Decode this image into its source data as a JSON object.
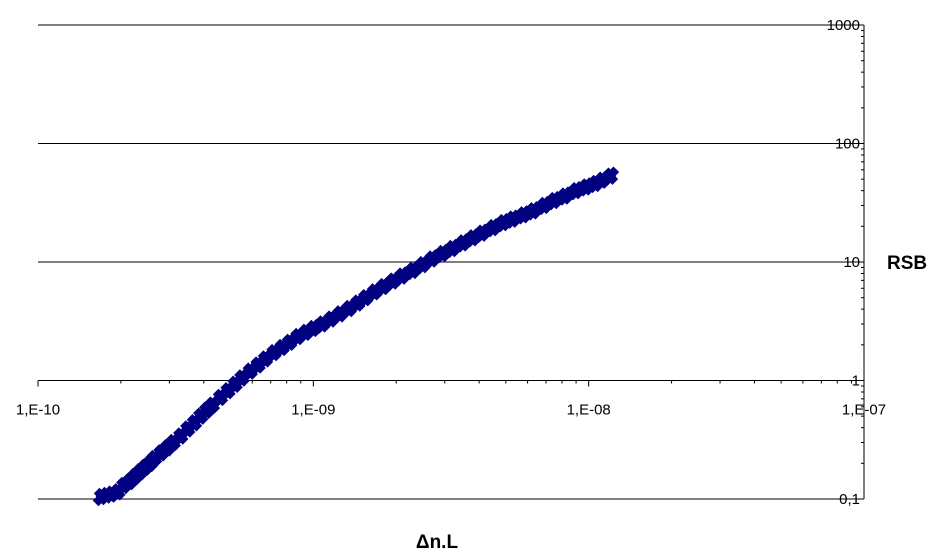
{
  "chart_data": {
    "type": "scatter",
    "title": "",
    "xlabel": "Δn.L",
    "ylabel": "RSB",
    "x_scale": "log",
    "y_scale": "log",
    "xlim": [
      1e-10,
      1e-07
    ],
    "ylim": [
      0.1,
      1000
    ],
    "x_ticks": [
      1e-10,
      1e-09,
      1e-08,
      1e-07
    ],
    "x_tick_labels": [
      "1,E-10",
      "1,E-09",
      "1,E-08",
      "1,E-07"
    ],
    "y_ticks": [
      0.1,
      1,
      10,
      100,
      1000
    ],
    "y_tick_labels": [
      "0,1",
      "1",
      "10",
      "100",
      "1000"
    ],
    "grid": "horizontal",
    "x_axis_crosses_y_at": 1,
    "y_axis_position": "right",
    "marker": "diamond",
    "color": "#000080",
    "series": [
      {
        "x": [
          1.7e-10,
          1.85e-10,
          1.95e-10,
          2.05e-10,
          2.15e-10,
          2.25e-10,
          2.35e-10,
          2.45e-10,
          2.55e-10,
          2.65e-10,
          2.8e-10,
          2.95e-10,
          3.1e-10,
          3.3e-10,
          3.5e-10,
          3.7e-10,
          3.9e-10,
          4.1e-10,
          4.3e-10,
          4.6e-10,
          4.9e-10,
          5.2e-10,
          5.5e-10,
          5.9e-10,
          6.3e-10,
          6.7e-10,
          7.2e-10,
          7.7e-10,
          8.2e-10,
          8.8e-10,
          9.4e-10,
          1e-09,
          1.08e-09,
          1.16e-09,
          1.25e-09,
          1.35e-09,
          1.45e-09,
          1.55e-09,
          1.67e-09,
          1.8e-09,
          1.95e-09,
          2.1e-09,
          2.3e-09,
          2.5e-09,
          2.7e-09,
          2.95e-09,
          3.2e-09,
          3.5e-09,
          3.8e-09,
          4.1e-09,
          4.5e-09,
          4.9e-09,
          5.3e-09,
          5.8e-09,
          6.3e-09,
          6.9e-09,
          7.5e-09,
          8.2e-09,
          9e-09,
          9.8e-09,
          1.06e-08,
          1.12e-08,
          1.2e-08
        ],
        "y": [
          0.105,
          0.11,
          0.115,
          0.13,
          0.14,
          0.155,
          0.17,
          0.185,
          0.2,
          0.22,
          0.245,
          0.27,
          0.3,
          0.34,
          0.39,
          0.44,
          0.5,
          0.56,
          0.62,
          0.72,
          0.82,
          0.93,
          1.05,
          1.2,
          1.35,
          1.52,
          1.72,
          1.9,
          2.1,
          2.35,
          2.55,
          2.75,
          3.0,
          3.3,
          3.65,
          4.05,
          4.5,
          5.0,
          5.6,
          6.2,
          6.9,
          7.6,
          8.5,
          9.5,
          10.6,
          11.8,
          13.0,
          14.5,
          16.0,
          17.5,
          19.5,
          21.5,
          23.0,
          25.0,
          27.0,
          30.0,
          33.0,
          36.0,
          40.0,
          43.0,
          46.0,
          49.0,
          53.0
        ]
      }
    ]
  }
}
